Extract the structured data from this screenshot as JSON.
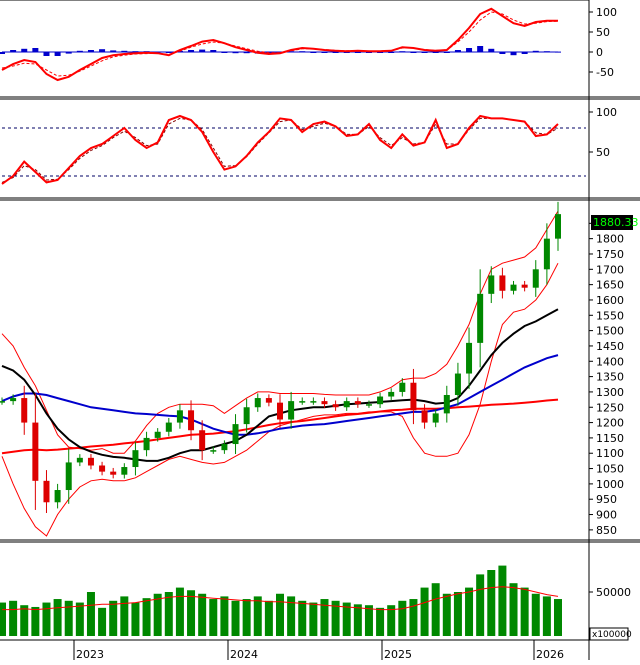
{
  "chart_data": {
    "type": "candlestick",
    "x_labels": [
      "2023",
      "2024",
      "2025",
      "2026"
    ],
    "panels": [
      {
        "id": "macd",
        "yticks": [
          "100",
          "50",
          "0",
          "-50"
        ],
        "ylim": [
          -100,
          120
        ],
        "series": [
          {
            "color": "#ff0000",
            "values": [
              -45,
              -30,
              -20,
              -25,
              -55,
              -70,
              -62,
              -45,
              -30,
              -15,
              -8,
              -5,
              -3,
              -2,
              -3,
              -8,
              5,
              15,
              26,
              30,
              22,
              12,
              5,
              -2,
              -5,
              -3,
              5,
              10,
              8,
              5,
              3,
              2,
              3,
              2,
              2,
              3,
              12,
              10,
              5,
              3,
              5,
              30,
              60,
              95,
              108,
              90,
              72,
              65,
              75,
              78,
              78
            ]
          },
          {
            "color": "#ff0000",
            "values": [
              -40,
              -35,
              -28,
              -30,
              -45,
              -60,
              -58,
              -48,
              -35,
              -22,
              -12,
              -8,
              -5,
              -4,
              -3,
              -6,
              2,
              12,
              20,
              25,
              22,
              15,
              8,
              2,
              -2,
              -2,
              3,
              8,
              8,
              6,
              4,
              3,
              3,
              2,
              2,
              3,
              10,
              10,
              6,
              4,
              5,
              25,
              50,
              80,
              100,
              95,
              80,
              70,
              72,
              76,
              77
            ]
          }
        ],
        "histogram": [
          -5,
          5,
          8,
          10,
          -10,
          -10,
          -4,
          3,
          5,
          7,
          4,
          3,
          2,
          2,
          1,
          -2,
          3,
          5,
          6,
          5,
          0,
          -3,
          -3,
          -4,
          -3,
          -1,
          2,
          2,
          0,
          -1,
          -1,
          -1,
          0,
          0,
          0,
          0,
          2,
          0,
          -1,
          -1,
          0,
          5,
          10,
          15,
          8,
          -5,
          -8,
          -5,
          3,
          2,
          1
        ]
      },
      {
        "id": "rsi",
        "yticks": [
          "100",
          "50"
        ],
        "ylim": [
          0,
          110
        ],
        "ref_lines": [
          80,
          20
        ],
        "series": [
          {
            "color": "#ff0000",
            "values": [
              10,
              20,
              38,
              25,
              12,
              15,
              30,
              45,
              55,
              60,
              70,
              80,
              65,
              55,
              62,
              90,
              95,
              90,
              75,
              50,
              28,
              32,
              45,
              62,
              75,
              92,
              90,
              75,
              85,
              88,
              82,
              70,
              72,
              85,
              65,
              55,
              72,
              58,
              62,
              90,
              55,
              60,
              80,
              95,
              92,
              92,
              90,
              88,
              70,
              72,
              85
            ]
          },
          {
            "color": "#880000",
            "values": [
              12,
              18,
              33,
              28,
              15,
              16,
              28,
              42,
              52,
              58,
              68,
              76,
              68,
              58,
              60,
              85,
              92,
              90,
              78,
              55,
              32,
              33,
              44,
              60,
              74,
              88,
              90,
              78,
              82,
              86,
              82,
              72,
              72,
              82,
              68,
              58,
              68,
              60,
              62,
              85,
              60,
              60,
              78,
              92,
              92,
              92,
              90,
              88,
              74,
              72,
              80
            ]
          }
        ]
      },
      {
        "id": "price",
        "yticks": [
          "1850",
          "1800",
          "1750",
          "1700",
          "1650",
          "1600",
          "1550",
          "1500",
          "1450",
          "1400",
          "1350",
          "1300",
          "1250",
          "1200",
          "1150",
          "1100",
          "1050",
          "1000",
          "950",
          "900",
          "850"
        ],
        "ylim": [
          830,
          1900
        ],
        "last_value": "1880.33",
        "closes": [
          1270,
          1280,
          1200,
          1010,
          940,
          980,
          1070,
          1085,
          1060,
          1040,
          1030,
          1055,
          1110,
          1150,
          1170,
          1200,
          1240,
          1175,
          1110,
          1110,
          1130,
          1195,
          1250,
          1280,
          1265,
          1210,
          1270,
          1270,
          1270,
          1260,
          1250,
          1270,
          1260,
          1260,
          1285,
          1300,
          1330,
          1240,
          1200,
          1230,
          1290,
          1360,
          1460,
          1620,
          1680,
          1630,
          1650,
          1640,
          1700,
          1800,
          1880
        ],
        "lines": [
          {
            "color": "#000000",
            "values": [
              1385,
              1370,
              1340,
              1290,
              1230,
              1180,
              1145,
              1120,
              1105,
              1095,
              1088,
              1085,
              1080,
              1075,
              1075,
              1085,
              1100,
              1110,
              1110,
              1120,
              1130,
              1140,
              1160,
              1190,
              1220,
              1230,
              1240,
              1245,
              1250,
              1250,
              1255,
              1260,
              1262,
              1265,
              1267,
              1270,
              1273,
              1275,
              1270,
              1262,
              1265,
              1280,
              1320,
              1370,
              1420,
              1460,
              1490,
              1515,
              1530,
              1550,
              1570
            ]
          },
          {
            "color": "#0000cc",
            "values": [
              1270,
              1285,
              1295,
              1295,
              1290,
              1280,
              1270,
              1260,
              1250,
              1245,
              1240,
              1235,
              1230,
              1228,
              1225,
              1222,
              1220,
              1210,
              1195,
              1180,
              1170,
              1160,
              1160,
              1165,
              1172,
              1180,
              1185,
              1190,
              1193,
              1195,
              1200,
              1205,
              1210,
              1215,
              1220,
              1225,
              1230,
              1235,
              1235,
              1240,
              1250,
              1260,
              1280,
              1300,
              1320,
              1340,
              1360,
              1380,
              1395,
              1410,
              1420
            ]
          },
          {
            "color": "#ff0000",
            "values": [
              1100,
              1105,
              1110,
              1112,
              1110,
              1112,
              1115,
              1118,
              1122,
              1125,
              1128,
              1132,
              1136,
              1140,
              1145,
              1150,
              1155,
              1160,
              1162,
              1164,
              1168,
              1172,
              1178,
              1185,
              1192,
              1198,
              1202,
              1205,
              1210,
              1215,
              1220,
              1225,
              1228,
              1232,
              1236,
              1240,
              1242,
              1245,
              1245,
              1245,
              1247,
              1250,
              1252,
              1255,
              1258,
              1260,
              1262,
              1265,
              1268,
              1272,
              1275
            ]
          }
        ],
        "bands": [
          {
            "color": "#ff0000",
            "values": [
              1490,
              1450,
              1380,
              1320,
              1240,
              1160,
              1120,
              1115,
              1110,
              1115,
              1100,
              1100,
              1140,
              1190,
              1230,
              1250,
              1260,
              1260,
              1260,
              1255,
              1230,
              1255,
              1280,
              1300,
              1300,
              1295,
              1295,
              1295,
              1295,
              1292,
              1290,
              1290,
              1290,
              1290,
              1300,
              1315,
              1340,
              1345,
              1345,
              1360,
              1390,
              1450,
              1520,
              1620,
              1700,
              1720,
              1730,
              1740,
              1770,
              1830,
              1890
            ]
          },
          {
            "color": "#ff0000",
            "values": [
              1090,
              1000,
              920,
              860,
              830,
              900,
              950,
              990,
              1010,
              1015,
              1010,
              1010,
              1020,
              1040,
              1060,
              1080,
              1090,
              1080,
              1070,
              1065,
              1070,
              1090,
              1110,
              1140,
              1170,
              1190,
              1200,
              1210,
              1220,
              1225,
              1225,
              1230,
              1230,
              1235,
              1235,
              1235,
              1220,
              1150,
              1100,
              1090,
              1090,
              1100,
              1160,
              1260,
              1400,
              1520,
              1560,
              1570,
              1600,
              1650,
              1720
            ]
          }
        ]
      },
      {
        "id": "volume",
        "yticks": [
          "50000"
        ],
        "ylim": [
          0,
          100000
        ],
        "unit": "x100000",
        "values": [
          38000,
          40000,
          35000,
          33000,
          38000,
          42000,
          40000,
          38000,
          50000,
          32000,
          40000,
          45000,
          38000,
          43000,
          48000,
          50000,
          55000,
          52000,
          48000,
          42000,
          45000,
          40000,
          42000,
          45000,
          40000,
          48000,
          45000,
          40000,
          38000,
          42000,
          40000,
          38000,
          36000,
          35000,
          32000,
          35000,
          40000,
          42000,
          55000,
          60000,
          48000,
          50000,
          55000,
          70000,
          75000,
          80000,
          60000,
          55000,
          48000,
          45000,
          42000
        ],
        "line": {
          "color": "#ff0000",
          "values": [
            30000,
            30000,
            31000,
            30000,
            31000,
            32000,
            33000,
            34000,
            35000,
            36000,
            36000,
            37000,
            38000,
            40000,
            42000,
            44000,
            45000,
            45000,
            44000,
            43000,
            42000,
            41000,
            40000,
            40000,
            39000,
            39000,
            38000,
            37000,
            36000,
            35000,
            34000,
            33000,
            32000,
            31000,
            30000,
            30000,
            31000,
            34000,
            38000,
            42000,
            45000,
            48000,
            50000,
            53000,
            55000,
            56000,
            55000,
            53000,
            50000,
            47000,
            45000
          ]
        }
      }
    ]
  }
}
